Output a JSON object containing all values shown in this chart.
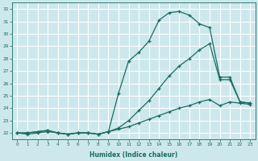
{
  "xlabel": "Humidex (Indice chaleur)",
  "xlim": [
    -0.5,
    23.5
  ],
  "ylim": [
    21.5,
    32.5
  ],
  "yticks": [
    22,
    23,
    24,
    25,
    26,
    27,
    28,
    29,
    30,
    31,
    32
  ],
  "xticks": [
    0,
    1,
    2,
    3,
    4,
    5,
    6,
    7,
    8,
    9,
    10,
    11,
    12,
    13,
    14,
    15,
    16,
    17,
    18,
    19,
    20,
    21,
    22,
    23
  ],
  "bg_color": "#cde8ec",
  "grid_color": "#ffffff",
  "line_color": "#1a6b5f",
  "line1_y": [
    22.0,
    22.0,
    22.1,
    22.2,
    22.0,
    21.9,
    22.0,
    22.0,
    21.9,
    22.1,
    25.2,
    27.8,
    28.5,
    29.4,
    31.1,
    31.7,
    31.8,
    31.5,
    30.8,
    30.5,
    26.5,
    26.5,
    24.5,
    24.4
  ],
  "line2_y": [
    22.0,
    22.0,
    22.1,
    22.2,
    22.0,
    21.9,
    22.0,
    22.0,
    21.9,
    22.1,
    22.4,
    23.0,
    23.8,
    24.6,
    25.6,
    26.6,
    27.4,
    28.0,
    28.7,
    29.2,
    26.3,
    26.3,
    24.5,
    24.4
  ],
  "line3_y": [
    22.0,
    21.9,
    22.0,
    22.1,
    22.0,
    21.9,
    22.0,
    22.0,
    21.9,
    22.1,
    22.3,
    22.5,
    22.8,
    23.1,
    23.4,
    23.7,
    24.0,
    24.2,
    24.5,
    24.7,
    24.2,
    24.5,
    24.4,
    24.3
  ]
}
